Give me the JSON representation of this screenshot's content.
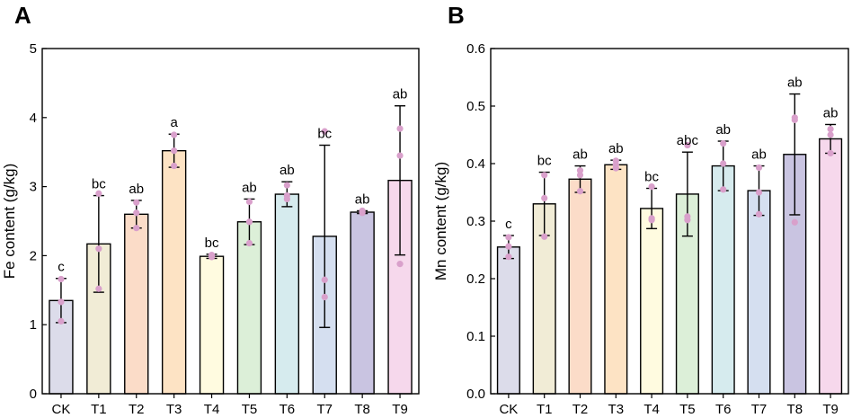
{
  "chart_data": [
    {
      "type": "bar",
      "panel_label": "A",
      "ylabel": "Fe content (g/kg)",
      "xlabel": "",
      "ylim": [
        0,
        5
      ],
      "yticks": [
        0,
        1,
        2,
        3,
        4,
        5
      ],
      "ytick_labels": [
        "0",
        "1",
        "2",
        "3",
        "4",
        "5"
      ],
      "categories": [
        "CK",
        "T1",
        "T2",
        "T3",
        "T4",
        "T5",
        "T6",
        "T7",
        "T8",
        "T9"
      ],
      "values": [
        1.35,
        2.17,
        2.6,
        3.52,
        1.99,
        2.49,
        2.89,
        2.28,
        2.63,
        3.09
      ],
      "errors": [
        0.32,
        0.7,
        0.2,
        0.24,
        0.03,
        0.33,
        0.18,
        1.32,
        0.02,
        1.08
      ],
      "letters": [
        "c",
        "bc",
        "ab",
        "a",
        "bc",
        "ab",
        "ab",
        "bc",
        "ab",
        "ab"
      ],
      "points": [
        [
          1.05,
          1.33,
          1.66
        ],
        [
          1.52,
          2.1,
          2.9
        ],
        [
          2.4,
          2.62,
          2.77
        ],
        [
          3.3,
          3.52,
          3.75
        ],
        [
          1.98,
          1.99,
          2.01
        ],
        [
          2.18,
          2.49,
          2.78
        ],
        [
          2.82,
          2.87,
          3.02
        ],
        [
          1.4,
          1.65,
          3.8
        ],
        [
          2.62,
          2.63,
          2.65
        ],
        [
          1.88,
          3.45,
          3.84
        ]
      ]
    },
    {
      "type": "bar",
      "panel_label": "B",
      "ylabel": "Mn content (g/kg)",
      "xlabel": "",
      "ylim": [
        0,
        0.6
      ],
      "yticks": [
        0,
        0.1,
        0.2,
        0.3,
        0.4,
        0.5,
        0.6
      ],
      "ytick_labels": [
        "0.0",
        "0.1",
        "0.2",
        "0.3",
        "0.4",
        "0.5",
        "0.6"
      ],
      "categories": [
        "CK",
        "T1",
        "T2",
        "T3",
        "T4",
        "T5",
        "T6",
        "T7",
        "T8",
        "T9"
      ],
      "values": [
        0.255,
        0.33,
        0.373,
        0.398,
        0.322,
        0.347,
        0.396,
        0.353,
        0.416,
        0.443
      ],
      "errors": [
        0.02,
        0.055,
        0.023,
        0.008,
        0.035,
        0.073,
        0.043,
        0.043,
        0.105,
        0.025
      ],
      "letters": [
        "c",
        "bc",
        "ab",
        "ab",
        "bc",
        "abc",
        "ab",
        "ab",
        "ab",
        "ab"
      ],
      "points": [
        [
          0.238,
          0.256,
          0.272
        ],
        [
          0.273,
          0.34,
          0.38
        ],
        [
          0.352,
          0.38,
          0.388
        ],
        [
          0.392,
          0.398,
          0.405
        ],
        [
          0.302,
          0.305,
          0.36
        ],
        [
          0.302,
          0.308,
          0.432
        ],
        [
          0.355,
          0.4,
          0.435
        ],
        [
          0.312,
          0.35,
          0.393
        ],
        [
          0.298,
          0.476,
          0.48
        ],
        [
          0.418,
          0.45,
          0.46
        ]
      ]
    }
  ],
  "colors": {
    "bar_fills": [
      "#dcdcea",
      "#f1ecd6",
      "#fbdcc8",
      "#fde3c4",
      "#fffbe0",
      "#dcefd8",
      "#d6ebee",
      "#d5dff0",
      "#c9c4e1",
      "#f6d8ec"
    ],
    "bar_stroke": "#000000",
    "error_bar": "#000000",
    "points": "#d9a0cb"
  }
}
